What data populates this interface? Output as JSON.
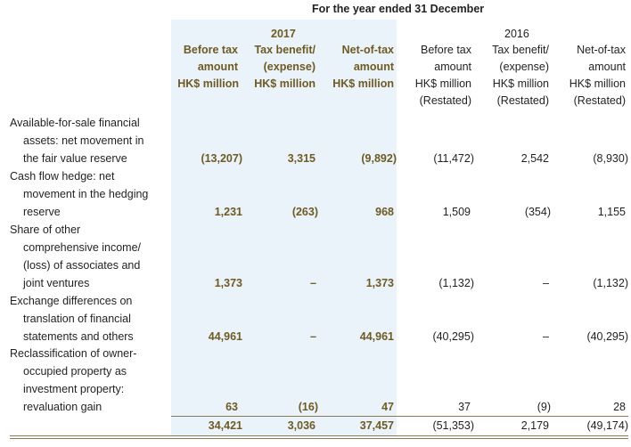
{
  "header": {
    "period": "For the year ended 31 December",
    "year_2017": "2017",
    "year_2016": "2016",
    "col_2017": [
      {
        "l1": "Before tax",
        "l2": "amount",
        "l3": "HK$ million"
      },
      {
        "l1": "Tax benefit/",
        "l2": "(expense)",
        "l3": "HK$ million"
      },
      {
        "l1": "Net-of-tax",
        "l2": "amount",
        "l3": "HK$ million"
      }
    ],
    "col_2016": [
      {
        "l1": "Before tax",
        "l2": "amount",
        "l3": "HK$ million",
        "l4": "(Restated)"
      },
      {
        "l1": "Tax benefit/",
        "l2": "(expense)",
        "l3": "HK$ million",
        "l4": "(Restated)"
      },
      {
        "l1": "Net-of-tax",
        "l2": "amount",
        "l3": "HK$ million",
        "l4": "(Restated)"
      }
    ]
  },
  "rows": [
    {
      "label": [
        "Available-for-sale financial",
        "assets: net movement in",
        "the fair value reserve"
      ],
      "v2017": [
        "(13,207)",
        "3,315",
        "(9,892)"
      ],
      "v2016": [
        "(11,472)",
        "2,542",
        "(8,930)"
      ]
    },
    {
      "label": [
        "Cash flow hedge: net",
        "movement in the hedging",
        "reserve"
      ],
      "v2017": [
        "1,231",
        "(263)",
        "968"
      ],
      "v2016": [
        "1,509",
        "(354)",
        "1,155"
      ]
    },
    {
      "label": [
        "Share of other",
        "comprehensive income/",
        "(loss) of associates and",
        "joint ventures"
      ],
      "v2017": [
        "1,373",
        "–",
        "1,373"
      ],
      "v2016": [
        "(1,132)",
        "–",
        "(1,132)"
      ]
    },
    {
      "label": [
        "Exchange differences on",
        "translation of financial",
        "statements and others"
      ],
      "v2017": [
        "44,961",
        "–",
        "44,961"
      ],
      "v2016": [
        "(40,295)",
        "–",
        "(40,295)"
      ]
    },
    {
      "label": [
        "Reclassification of owner-",
        "occupied property as",
        "investment property:",
        "revaluation gain"
      ],
      "v2017": [
        "63",
        "(16)",
        "47"
      ],
      "v2016": [
        "37",
        "(9)",
        "28"
      ]
    }
  ],
  "total": {
    "v2017": [
      "34,421",
      "3,036",
      "37,457"
    ],
    "v2016": [
      "(51,353)",
      "2,179",
      "(49,174)"
    ]
  }
}
